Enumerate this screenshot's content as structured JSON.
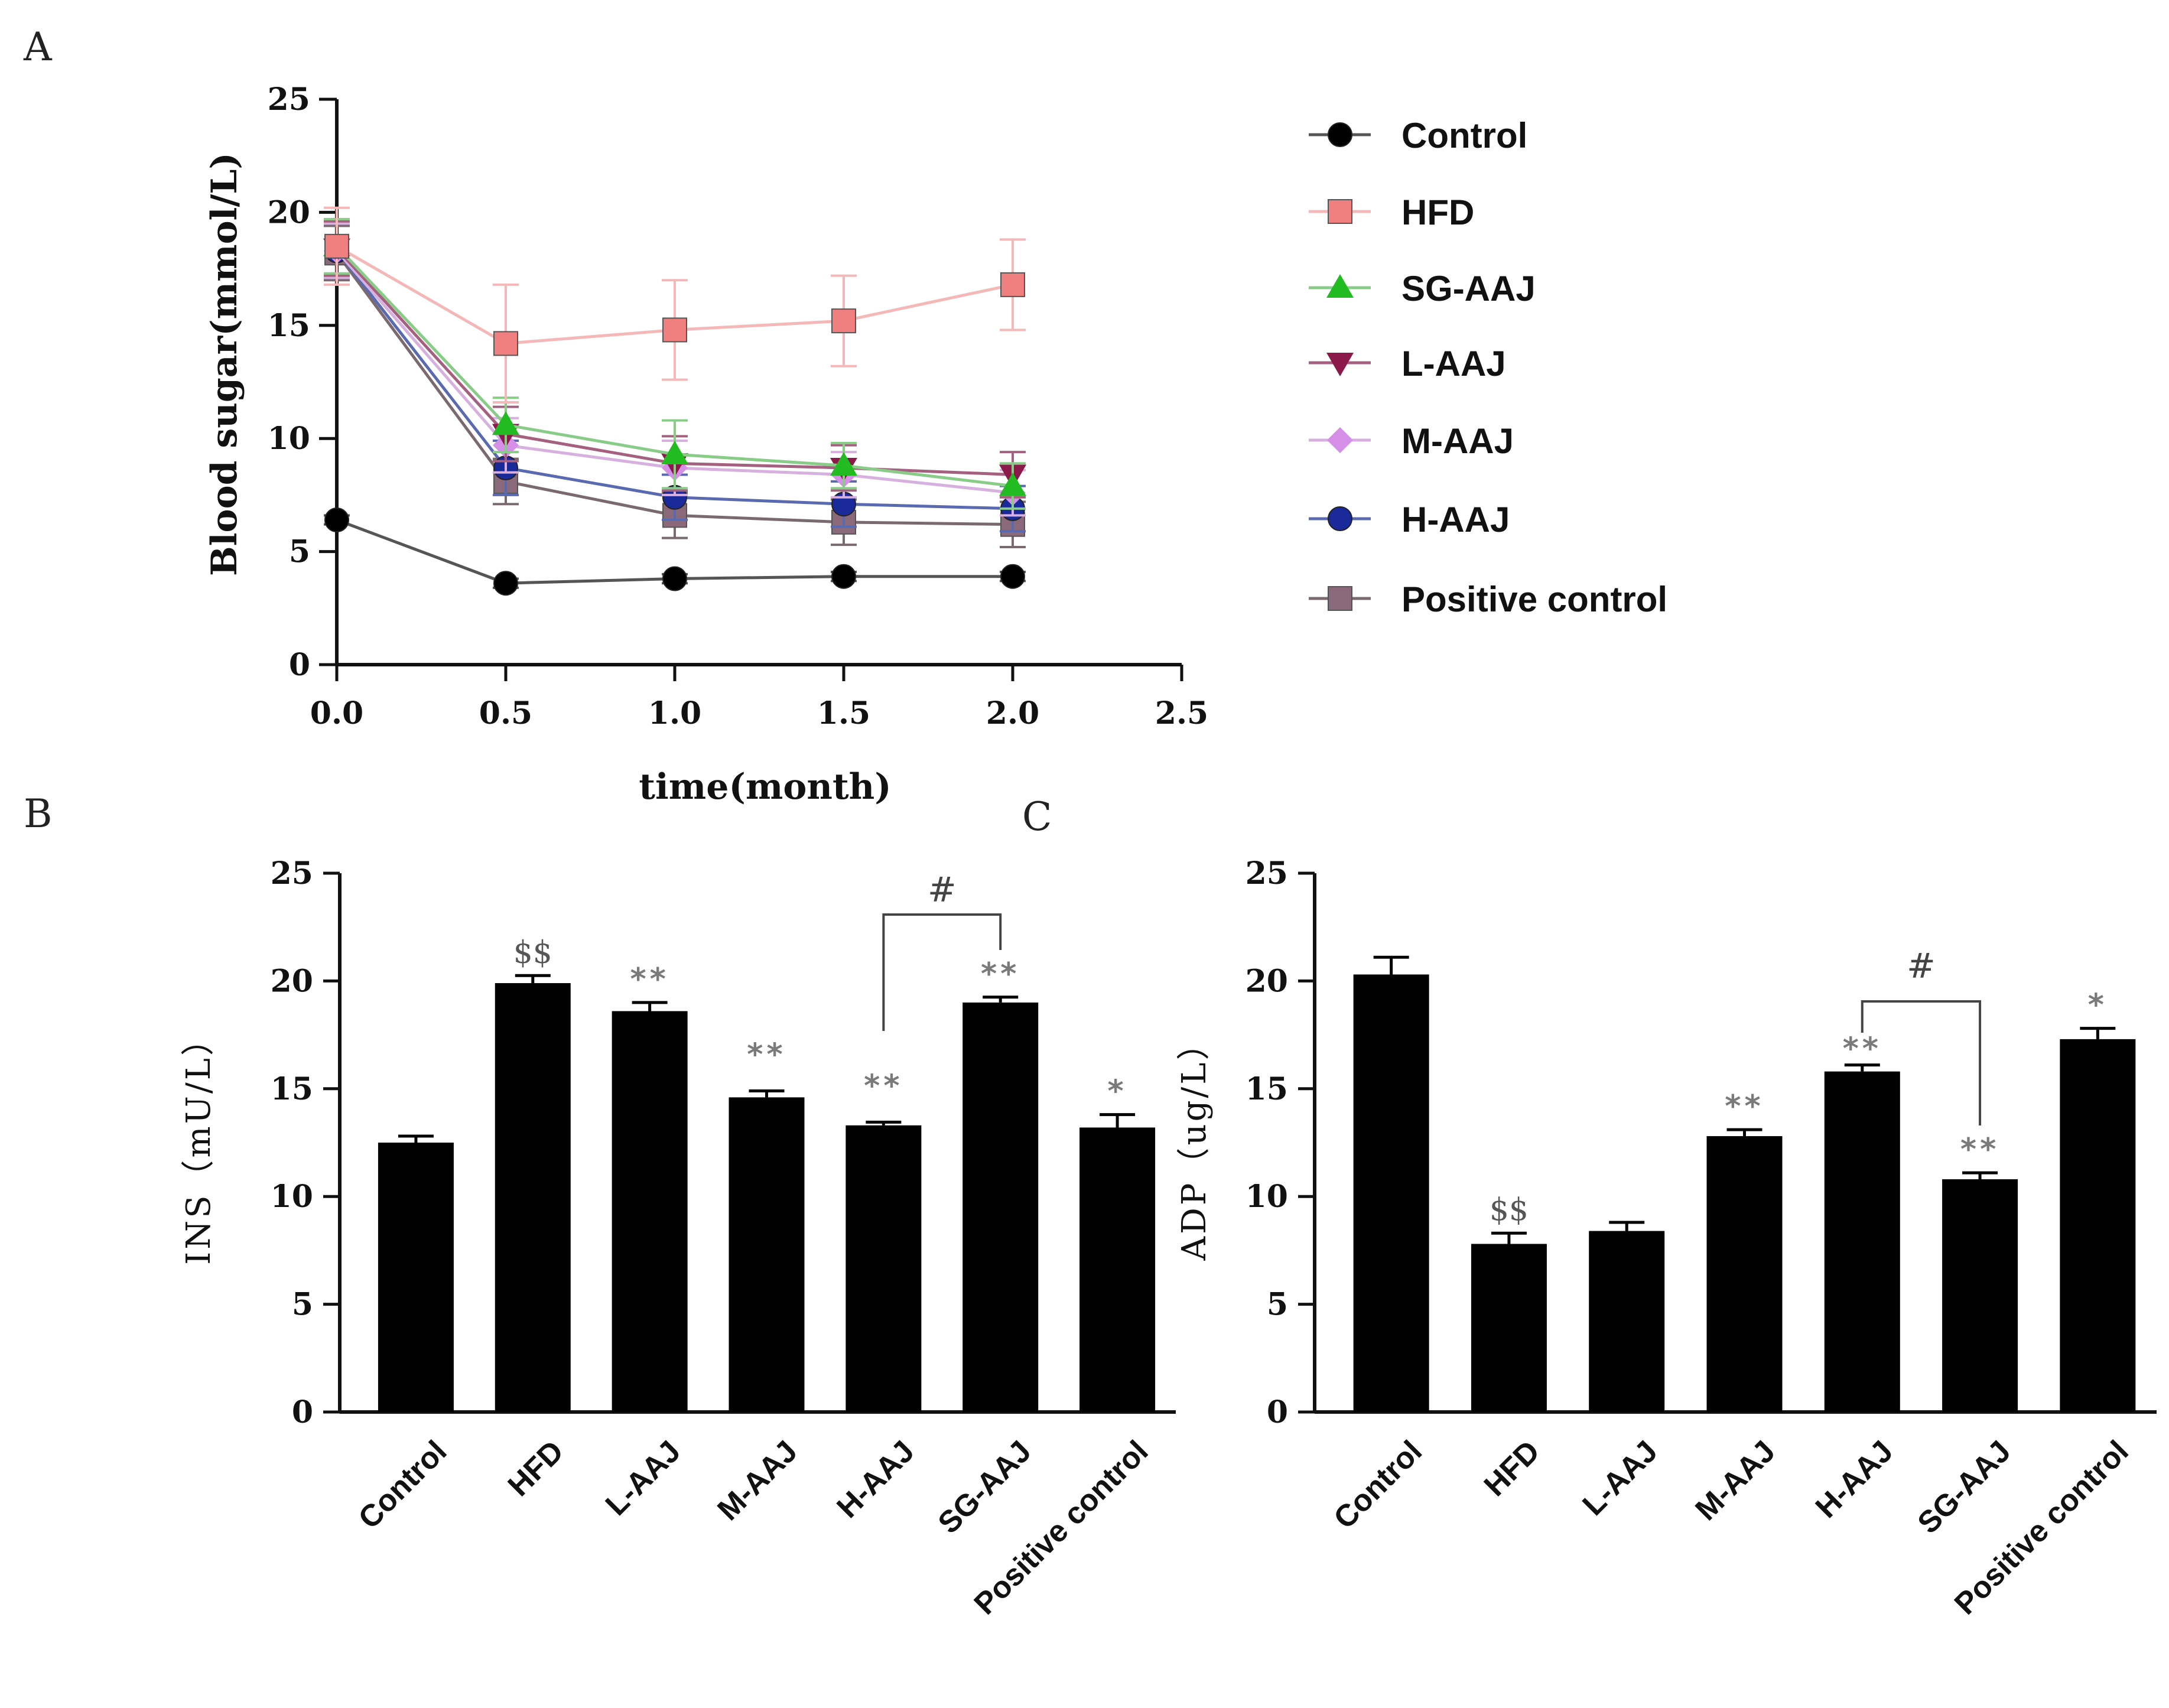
{
  "chart_data": [
    {
      "panel": "A",
      "type": "line",
      "xlabel": "time(month)",
      "ylabel": "Blood sugar(mmol/L)",
      "xlim": [
        0,
        2.5
      ],
      "ylim": [
        0,
        25
      ],
      "xticks": [
        "0.0",
        "0.5",
        "1.0",
        "1.5",
        "2.0",
        "2.5"
      ],
      "yticks": [
        "0",
        "5",
        "10",
        "15",
        "20",
        "25"
      ],
      "legend_position": "right",
      "x": [
        0,
        0.5,
        1.0,
        1.5,
        2.0
      ],
      "series": [
        {
          "name": "Control",
          "marker": "circle",
          "color": "#000000",
          "line_color": "#555555",
          "values": [
            6.4,
            3.6,
            3.8,
            3.9,
            3.9
          ],
          "error": [
            0.2,
            0.2,
            0.2,
            0.2,
            0.2
          ]
        },
        {
          "name": "HFD",
          "marker": "square",
          "color": "#f08080",
          "line_color": "#f4b8b8",
          "values": [
            18.5,
            14.2,
            14.8,
            15.2,
            16.8
          ],
          "error": [
            1.7,
            2.6,
            2.2,
            2.0,
            2.0
          ]
        },
        {
          "name": "SG-AAJ",
          "marker": "triangle-up",
          "color": "#22bb22",
          "line_color": "#88cc88",
          "values": [
            18.5,
            10.6,
            9.3,
            8.8,
            7.9
          ],
          "error": [
            1.2,
            1.2,
            1.5,
            1.0,
            1.0
          ]
        },
        {
          "name": "L-AAJ",
          "marker": "triangle-down",
          "color": "#8b1a4a",
          "line_color": "#a56080",
          "values": [
            18.4,
            10.2,
            8.9,
            8.7,
            8.4
          ],
          "error": [
            1.2,
            1.2,
            1.2,
            1.0,
            1.0
          ]
        },
        {
          "name": "M-AAJ",
          "marker": "diamond",
          "color": "#d68fe6",
          "line_color": "#d8b0e0",
          "values": [
            18.3,
            9.7,
            8.7,
            8.4,
            7.6
          ],
          "error": [
            1.2,
            1.2,
            1.2,
            1.0,
            1.0
          ]
        },
        {
          "name": "H-AAJ",
          "marker": "circle",
          "color": "#1a2a9a",
          "line_color": "#5a6ab0",
          "values": [
            18.3,
            8.7,
            7.4,
            7.1,
            6.9
          ],
          "error": [
            1.2,
            1.2,
            1.0,
            1.0,
            1.0
          ]
        },
        {
          "name": "Positive control",
          "marker": "square",
          "color": "#8a6a7a",
          "line_color": "#7a6a70",
          "values": [
            18.2,
            8.1,
            6.6,
            6.3,
            6.2
          ],
          "error": [
            1.2,
            1.0,
            1.0,
            1.0,
            1.0
          ]
        }
      ]
    },
    {
      "panel": "B",
      "type": "bar",
      "ylabel": "INS（mU/L）",
      "ylim": [
        0,
        25
      ],
      "yticks": [
        "0",
        "5",
        "10",
        "15",
        "20",
        "25"
      ],
      "categories": [
        "Control",
        "HFD",
        "L-AAJ",
        "M-AAJ",
        "H-AAJ",
        "SG-AAJ",
        "Positive control"
      ],
      "values": [
        12.5,
        19.9,
        18.6,
        14.6,
        13.3,
        19.0,
        13.2
      ],
      "error": [
        0.3,
        0.35,
        0.4,
        0.3,
        0.15,
        0.25,
        0.6
      ],
      "annotations": [
        "",
        "$$",
        "**",
        "**",
        "**",
        "**",
        "*"
      ],
      "bracket": {
        "from": "H-AAJ",
        "to": "SG-AAJ",
        "label": "#"
      }
    },
    {
      "panel": "C",
      "type": "bar",
      "ylabel": "ADP（ug/L）",
      "ylim": [
        0,
        25
      ],
      "yticks": [
        "0",
        "5",
        "10",
        "15",
        "20",
        "25"
      ],
      "categories": [
        "Control",
        "HFD",
        "L-AAJ",
        "M-AAJ",
        "H-AAJ",
        "SG-AAJ",
        "Positive control"
      ],
      "values": [
        20.3,
        7.8,
        8.4,
        12.8,
        15.8,
        10.8,
        17.3
      ],
      "error": [
        0.8,
        0.5,
        0.4,
        0.3,
        0.3,
        0.3,
        0.5
      ],
      "annotations": [
        "",
        "$$",
        "",
        "**",
        "**",
        "**",
        "*"
      ],
      "bracket": {
        "from": "H-AAJ",
        "to": "SG-AAJ",
        "label": "#"
      }
    }
  ]
}
